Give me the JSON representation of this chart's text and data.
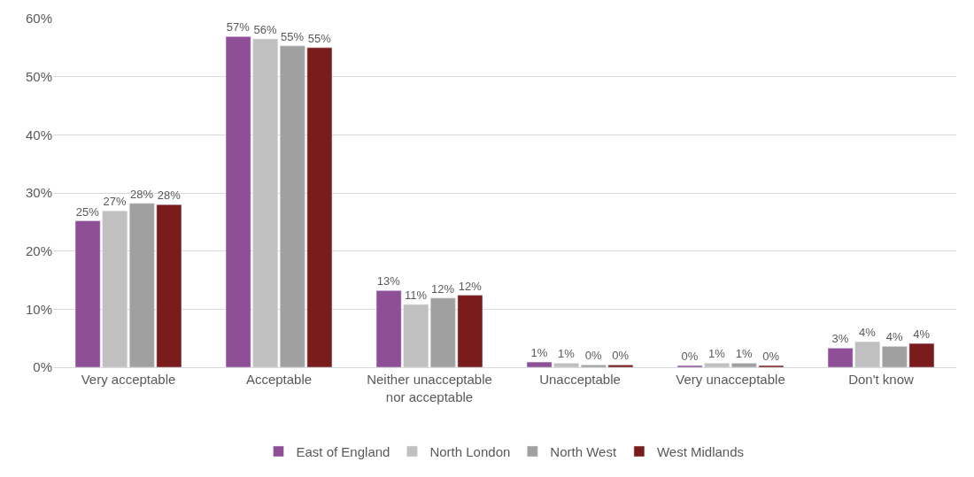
{
  "chart_data": {
    "type": "bar",
    "categories": [
      "Very acceptable",
      "Acceptable",
      "Neither unacceptable nor acceptable",
      "Unacceptable",
      "Very unacceptable",
      "Don't know"
    ],
    "series": [
      {
        "name": "East of England",
        "color": "#8e4f96",
        "values": [
          25.2,
          56.9,
          13.2,
          0.9,
          0.3,
          3.3
        ],
        "value_labels": [
          "25%",
          "57%",
          "13%",
          "1%",
          "0%",
          "3%"
        ]
      },
      {
        "name": "North London",
        "color": "#c0c0c0",
        "values": [
          26.9,
          56.5,
          10.8,
          0.7,
          0.7,
          4.4
        ],
        "value_labels": [
          "27%",
          "56%",
          "11%",
          "1%",
          "1%",
          "4%"
        ]
      },
      {
        "name": "North West",
        "color": "#a0a0a0",
        "values": [
          28.2,
          55.3,
          11.9,
          0.4,
          0.7,
          3.6
        ],
        "value_labels": [
          "28%",
          "55%",
          "12%",
          "0%",
          "1%",
          "4%"
        ]
      },
      {
        "name": "West Midlands",
        "color": "#7b1c1c",
        "values": [
          28.0,
          55.0,
          12.4,
          0.4,
          0.3,
          4.1
        ],
        "value_labels": [
          "28%",
          "55%",
          "12%",
          "0%",
          "0%",
          "4%"
        ]
      }
    ],
    "ylim": [
      0,
      60
    ],
    "yticks": [
      {
        "value": 0,
        "label": "0%"
      },
      {
        "value": 10,
        "label": "10%"
      },
      {
        "value": 20,
        "label": "20%"
      },
      {
        "value": 30,
        "label": "30%"
      },
      {
        "value": 40,
        "label": "40%"
      },
      {
        "value": 50,
        "label": "50%"
      },
      {
        "value": 60,
        "label": "60%"
      }
    ],
    "grid": "y",
    "legend": "bottom"
  }
}
